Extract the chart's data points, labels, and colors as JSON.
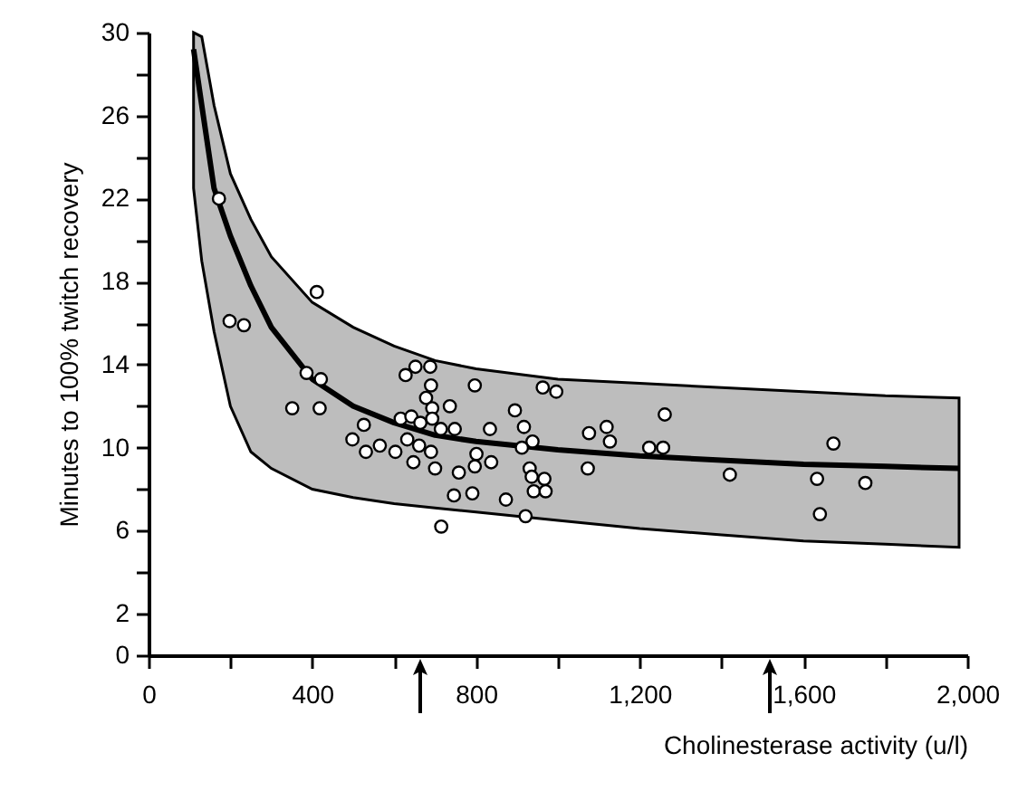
{
  "chart_data": {
    "type": "scatter",
    "xlabel": "Cholinesterase activity (u/l)",
    "ylabel": "Minutes to 100% twitch recovery",
    "xlim": [
      0,
      2000
    ],
    "ylim": [
      0,
      30
    ],
    "xticks": [
      0,
      {
        "value": 200,
        "label": null
      },
      400,
      {
        "value": 600,
        "label": null
      },
      800,
      {
        "value": 1000,
        "label": null
      },
      {
        "value": 1200,
        "label": "1,200"
      },
      {
        "value": 1400,
        "label": null
      },
      {
        "value": 1600,
        "label": "1,600"
      },
      {
        "value": 1800,
        "label": null
      },
      {
        "value": 2000,
        "label": "2,000"
      }
    ],
    "yticks": [
      0,
      2,
      {
        "value": 4,
        "label": null
      },
      6,
      {
        "value": 8,
        "label": null
      },
      10,
      {
        "value": 12,
        "label": null
      },
      14,
      {
        "value": 16,
        "label": null
      },
      18,
      {
        "value": 20,
        "label": null
      },
      22,
      {
        "value": 24,
        "label": null
      },
      26,
      {
        "value": 28,
        "label": null
      },
      30
    ],
    "series": [
      {
        "type": "line",
        "color": "#000000",
        "x": [
          110,
          130,
          160,
          200,
          250,
          300,
          400,
          500,
          600,
          700,
          800,
          1000,
          1200,
          1400,
          1600,
          1800,
          1980
        ],
        "values": [
          29.2,
          26.5,
          22.5,
          20.2,
          17.8,
          15.8,
          13.3,
          12.0,
          11.2,
          10.6,
          10.3,
          9.9,
          9.6,
          9.4,
          9.2,
          9.1,
          9.0
        ],
        "lower": [
          22.5,
          19,
          15.6,
          12,
          9.8,
          9.0,
          8.0,
          7.6,
          7.3,
          7.1,
          6.9,
          6.5,
          6.1,
          5.8,
          5.5,
          5.35,
          5.2
        ],
        "upper": [
          30,
          29.8,
          26.5,
          23.2,
          21,
          19.2,
          17,
          15.8,
          14.9,
          14.2,
          13.8,
          13.3,
          13.1,
          12.9,
          12.7,
          12.5,
          12.4
        ]
      },
      {
        "marker": "circle",
        "color": "#ffffff",
        "x": [
          172,
          411,
          198,
          233,
          386,
          421,
          351,
          418,
          628,
          652,
          688,
          690,
          797,
          678,
          693,
          736,
          895,
          963,
          996,
          526,
          616,
          642,
          664,
          693,
          714,
          748,
          834,
          917,
          938,
          912,
          1076,
          1119,
          1127,
          1223,
          1257,
          1261,
          498,
          531,
          565,
          603,
          632,
          647,
          661,
          690,
          700,
          758,
          797,
          801,
          837,
          931,
          936,
          967,
          941,
          970,
          1073,
          746,
          791,
          873,
          921,
          715,
          1420,
          1673,
          1633,
          1751,
          1640
        ],
        "values": [
          22.0,
          17.5,
          16.1,
          15.9,
          13.6,
          13.3,
          11.9,
          11.9,
          13.5,
          13.9,
          13.9,
          13.0,
          13.0,
          12.4,
          11.9,
          12.0,
          11.8,
          12.9,
          12.7,
          11.1,
          11.4,
          11.5,
          11.2,
          11.4,
          10.9,
          10.9,
          10.9,
          11.0,
          10.3,
          10.0,
          10.7,
          11.0,
          10.3,
          10.0,
          10.0,
          11.6,
          10.4,
          9.8,
          10.1,
          9.8,
          10.4,
          9.3,
          10.1,
          9.8,
          9.0,
          8.8,
          9.1,
          9.7,
          9.3,
          9.0,
          8.6,
          8.5,
          7.9,
          7.9,
          9.0,
          7.7,
          7.8,
          7.5,
          6.7,
          6.2,
          8.7,
          10.2,
          8.5,
          8.3,
          6.8
        ]
      }
    ]
  }
}
